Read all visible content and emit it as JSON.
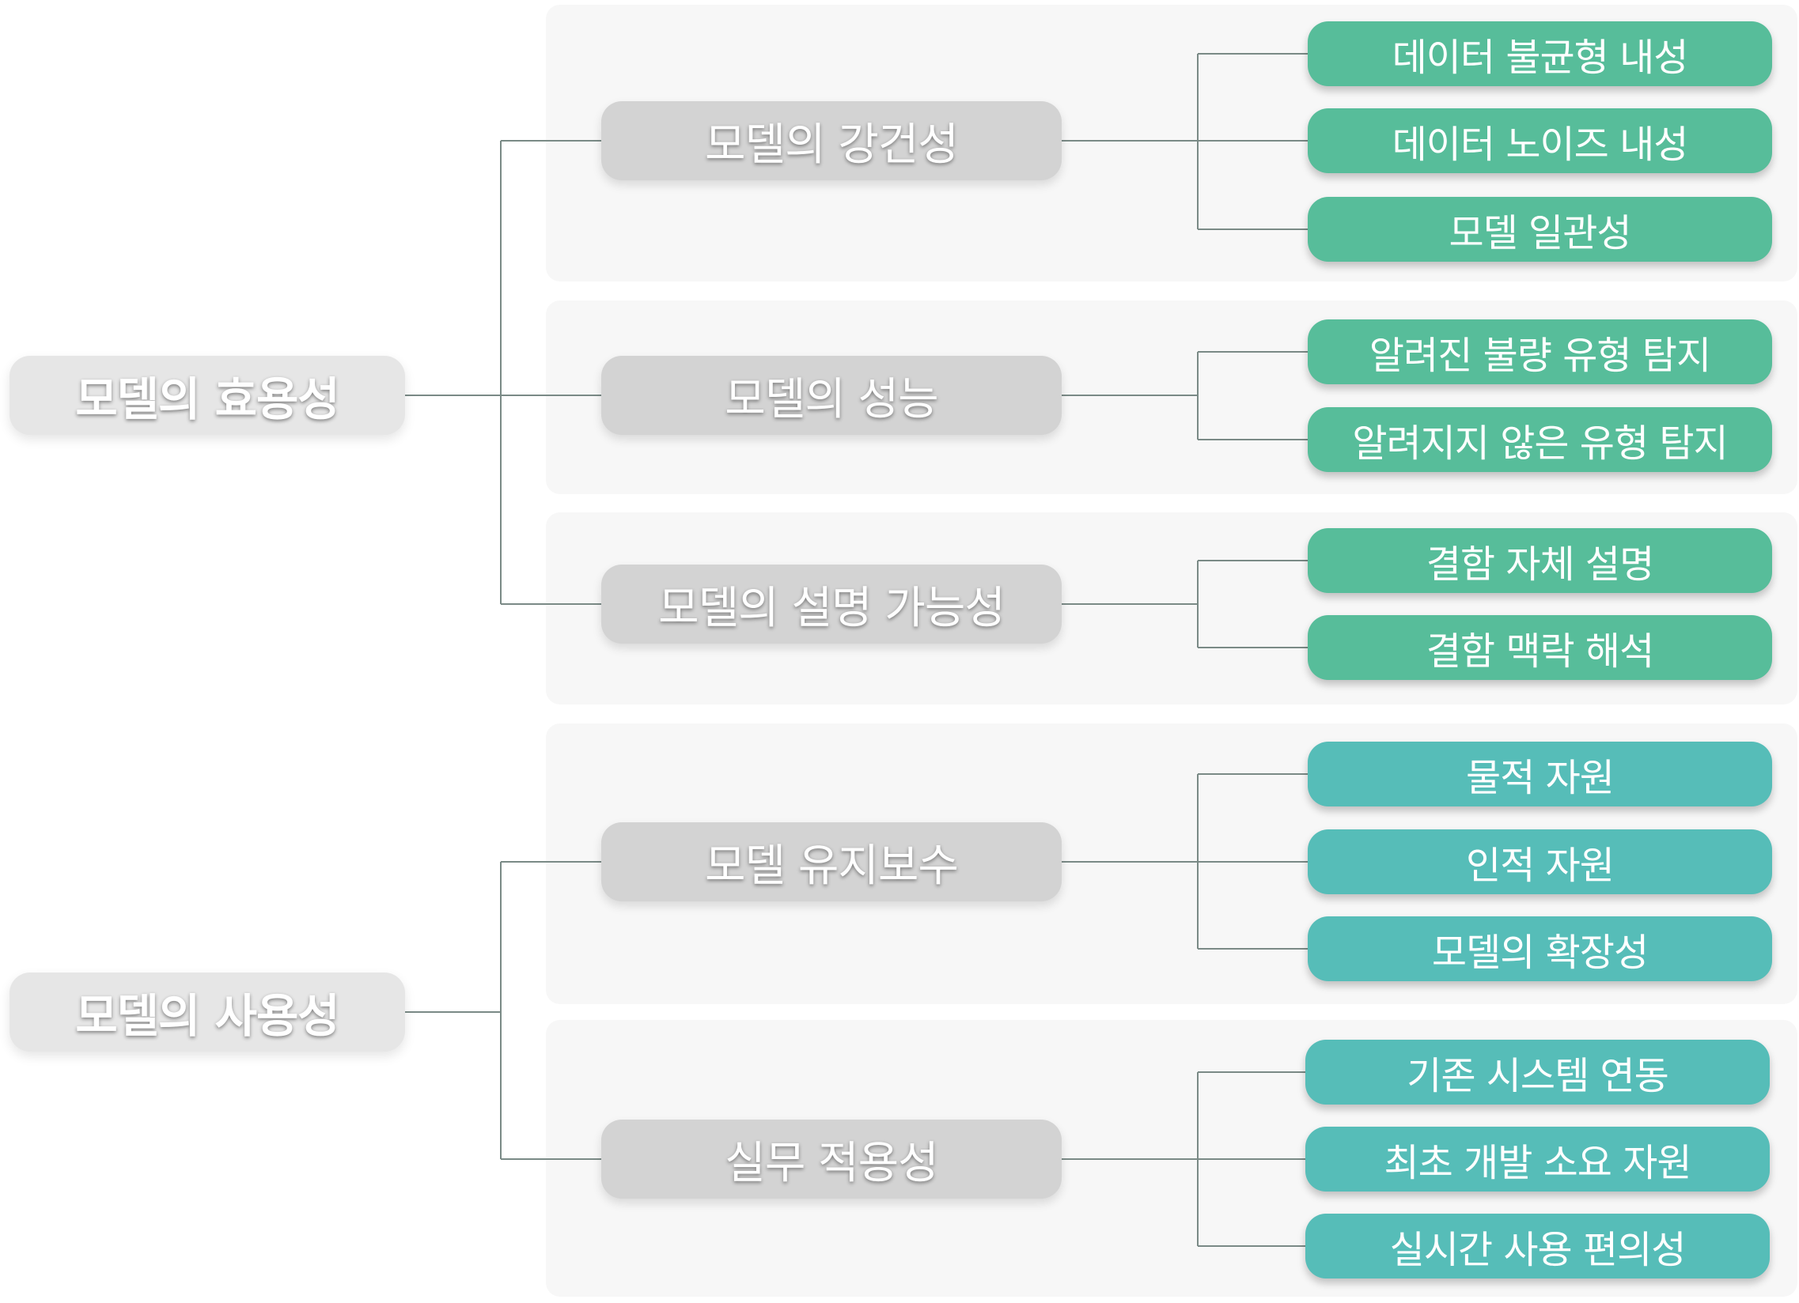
{
  "diagram": {
    "roots": [
      {
        "label": "모델의 효용성",
        "children": [
          {
            "label": "모델의 강건성",
            "leaves": [
              "데이터 불균형 내성",
              "데이터 노이즈 내성",
              "모델 일관성"
            ]
          },
          {
            "label": "모델의 성능",
            "leaves": [
              "알려진 불량 유형 탐지",
              "알려지지 않은 유형 탐지"
            ]
          },
          {
            "label": "모델의 설명 가능성",
            "leaves": [
              "결함 자체 설명",
              "결함 맥락 해석"
            ]
          }
        ]
      },
      {
        "label": "모델의 사용성",
        "children": [
          {
            "label": "모델 유지보수",
            "leaves": [
              "물적 자원",
              "인적 자원",
              "모델의 확장성"
            ]
          },
          {
            "label": "실무 적용성",
            "leaves": [
              "기존 시스템 연동",
              "최초 개발 소요 자원",
              "실시간 사용 편의성"
            ]
          }
        ]
      }
    ],
    "colors": {
      "leaf_group_1": "#57bd9a",
      "leaf_group_2": "#56bdb8",
      "mid_node": "#d3d3d3",
      "root_node": "#e6e6e6",
      "connector": "#7a8a86"
    }
  }
}
